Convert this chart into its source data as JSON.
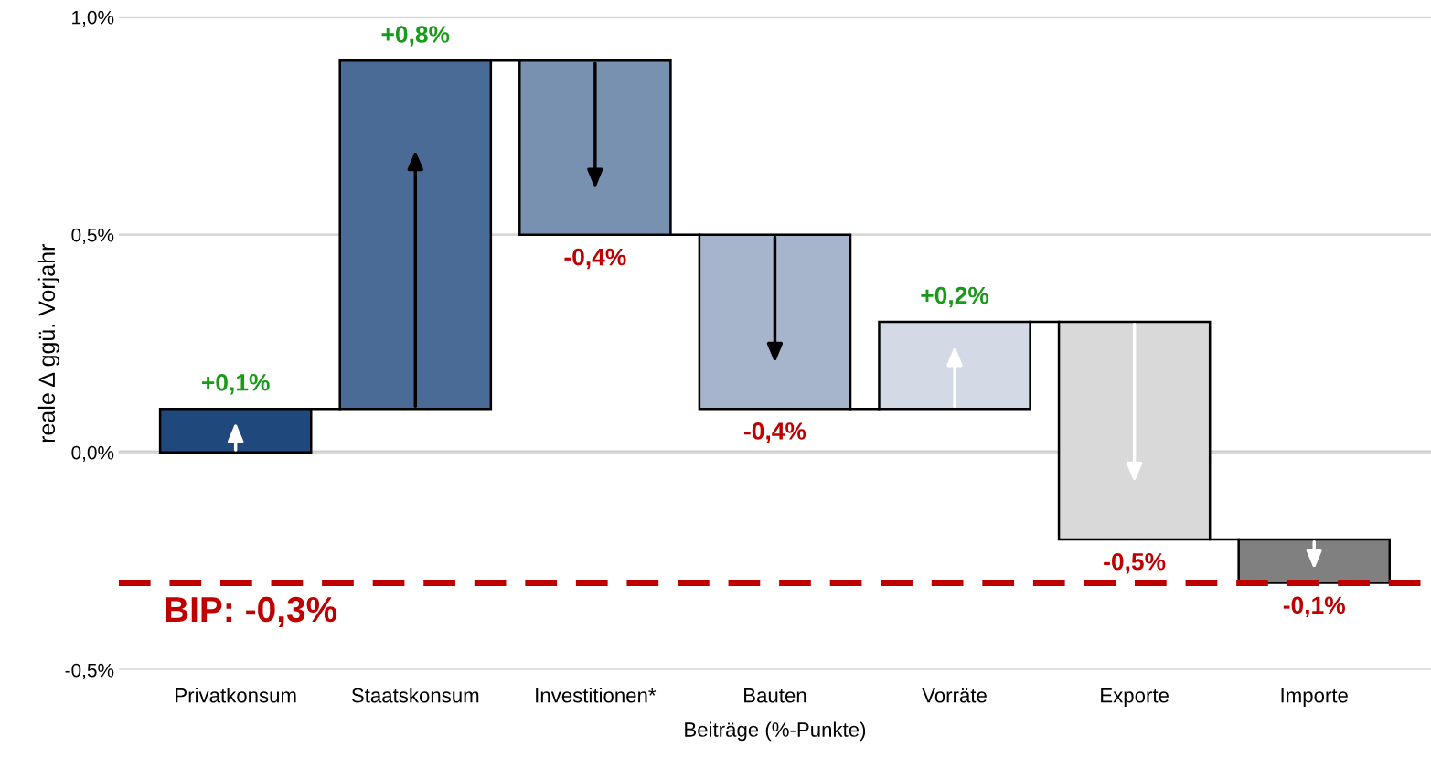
{
  "chart_data": {
    "type": "bar",
    "xlabel": "Beiträge (%-Punkte)",
    "ylabel": "reale Δ ggü. Vorjahr",
    "categories": [
      "Privatkonsum",
      "Staatskonsum",
      "Investitionen*",
      "Bauten",
      "Vorräte",
      "Exporte",
      "Importe"
    ],
    "values": [
      0.1,
      0.8,
      -0.4,
      -0.4,
      0.2,
      -0.5,
      -0.1
    ],
    "base": [
      0,
      0.1,
      0.9,
      0.5,
      0.1,
      0.3,
      -0.2
    ],
    "colors": [
      "#1f497d",
      "#4a6b96",
      "#7891b0",
      "#a6b5cb",
      "#d3dae5",
      "#d9d9d9",
      "#808080"
    ],
    "value_labels": [
      "+0,1%",
      "+0,8%",
      "-0,4%",
      "-0,4%",
      "+0,2%",
      "-0,5%",
      "-0,1%"
    ],
    "ylim": [
      -0.5,
      1.0
    ],
    "yticks": [
      {
        "value": -0.5,
        "label": "-0,5%"
      },
      {
        "value": 0,
        "label": "0,0%"
      },
      {
        "value": 0.5,
        "label": "0,5%"
      },
      {
        "value": 1.0,
        "label": "1,0%"
      }
    ],
    "grid": "y",
    "ref_lines": [
      {
        "axis": "y",
        "value": -0.3,
        "label": "BIP: -0,3%",
        "color": "#c00000",
        "line_style": "dashed"
      }
    ]
  }
}
